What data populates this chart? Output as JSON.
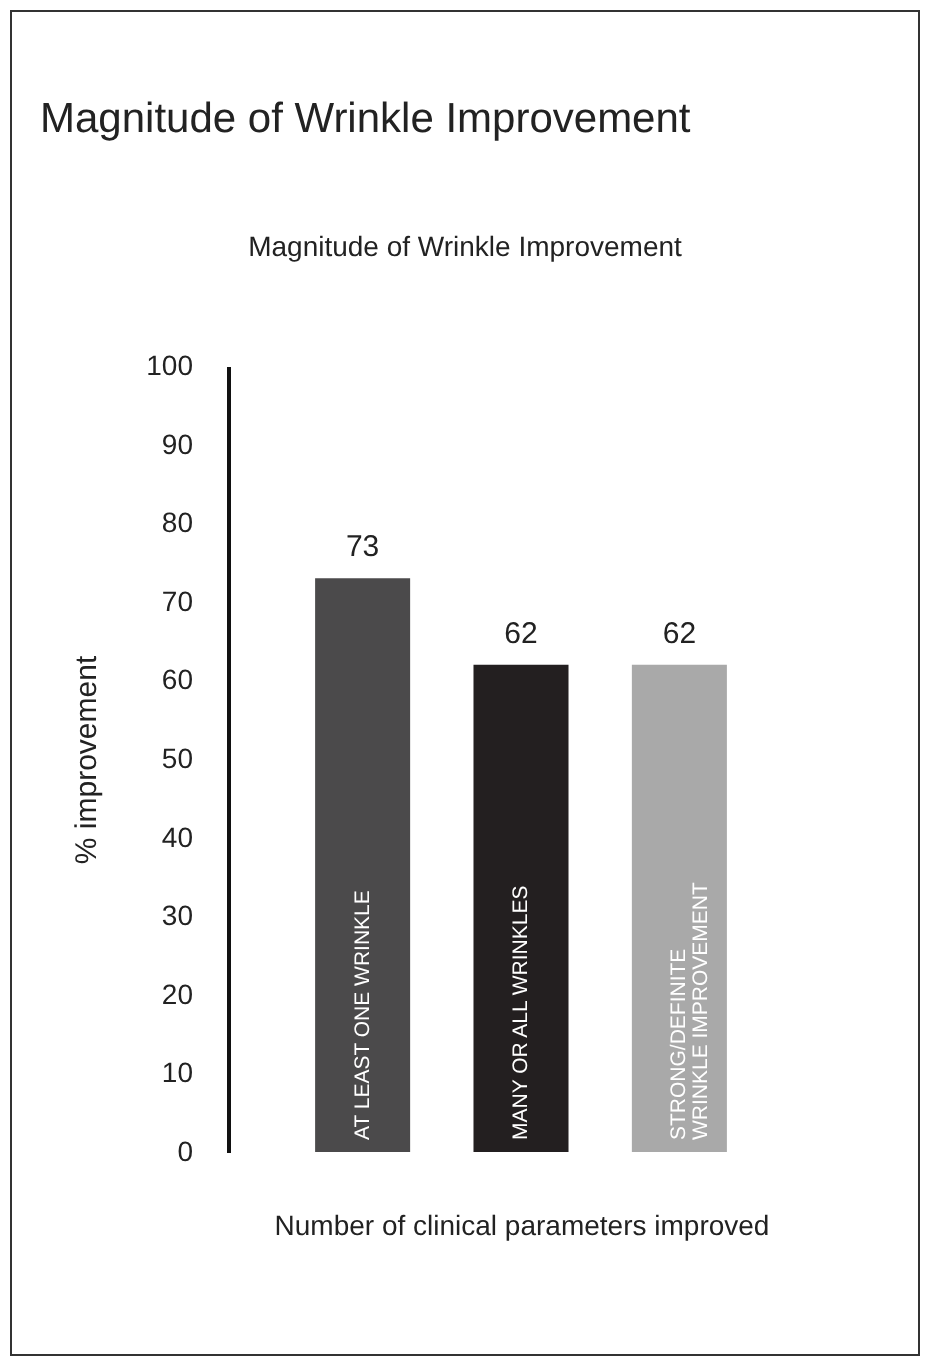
{
  "chart_data": {
    "type": "bar",
    "title": "Magnitude of Wrinkle Improvement",
    "subtitle": "Magnitude of Wrinkle Improvement",
    "xlabel": "Number of clinical parameters improved",
    "ylabel": "% improvement",
    "categories": [
      "AT LEAST ONE WRINKLE",
      "MANY OR ALL WRINKLES",
      "STRONG/DEFINITE WRINKLE IMPROVEMENT"
    ],
    "values": [
      73,
      62,
      62
    ],
    "colors": [
      "#4b4a4b",
      "#231f20",
      "#a9a9a9"
    ],
    "ylim": [
      0,
      100
    ],
    "yticks": [
      0,
      10,
      20,
      30,
      40,
      50,
      60,
      70,
      80,
      90,
      100
    ],
    "data_labels": true
  }
}
